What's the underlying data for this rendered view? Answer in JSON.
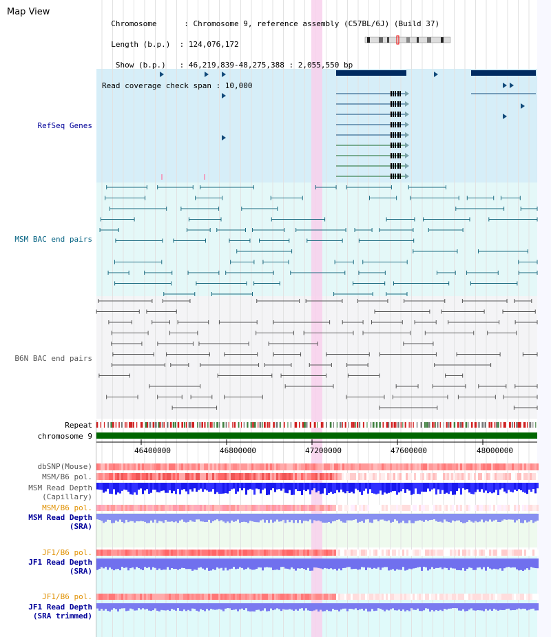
{
  "title": "Map View",
  "header": {
    "lines": [
      "  Chromosome      : Chromosome 9, reference assembly (C57BL/6J) (Build 37)",
      "  Length (b.p.)  : 124,076,172",
      "   Show (b.p.)   : 46,219,839-48,275,388 : 2,055,550 bp",
      "Read coverage check span : 10,000"
    ]
  },
  "tracks": {
    "refseq": "RefSeq Genes",
    "msm_bac": "MSM BAC end pairs",
    "b6n_bac": "B6N BAC end pairs",
    "repeat": "Repeat",
    "chromosome": "chromosome 9",
    "dbsnp": "dbSNP(Mouse)",
    "msm_b6_pol_1": "MSM/B6 pol.",
    "msm_depth_cap_1": "MSM Read Depth",
    "msm_depth_cap_2": "(Capillary)",
    "msm_b6_pol_2": "MSM/B6 pol.",
    "msm_depth_sra_1": "MSM Read Depth",
    "msm_depth_sra_2": "(SRA)",
    "jf1_b6_pol_1": "JF1/B6 pol.",
    "jf1_depth_sra_1": "JF1 Read Depth",
    "jf1_depth_sra_2": "(SRA)",
    "jf1_b6_pol_2": "JF1/B6 pol.",
    "jf1_depth_trim_1": "JF1 Read Depth",
    "jf1_depth_trim_2": "(SRA trimmed)"
  },
  "axis": {
    "ticks": [
      "46400000",
      "46800000",
      "47200000",
      "47600000",
      "48000000"
    ]
  },
  "colors": {
    "refseq_bg": "#d6eef8",
    "msm_bg": "#e4f8f8",
    "b6n_bg": "#f4f4f6",
    "label_blue": "#000099",
    "label_teal": "#006080",
    "label_gray": "#555555",
    "label_orange": "#e09000",
    "highlight": "#f8d0ec",
    "chromosome": "#006600"
  }
}
